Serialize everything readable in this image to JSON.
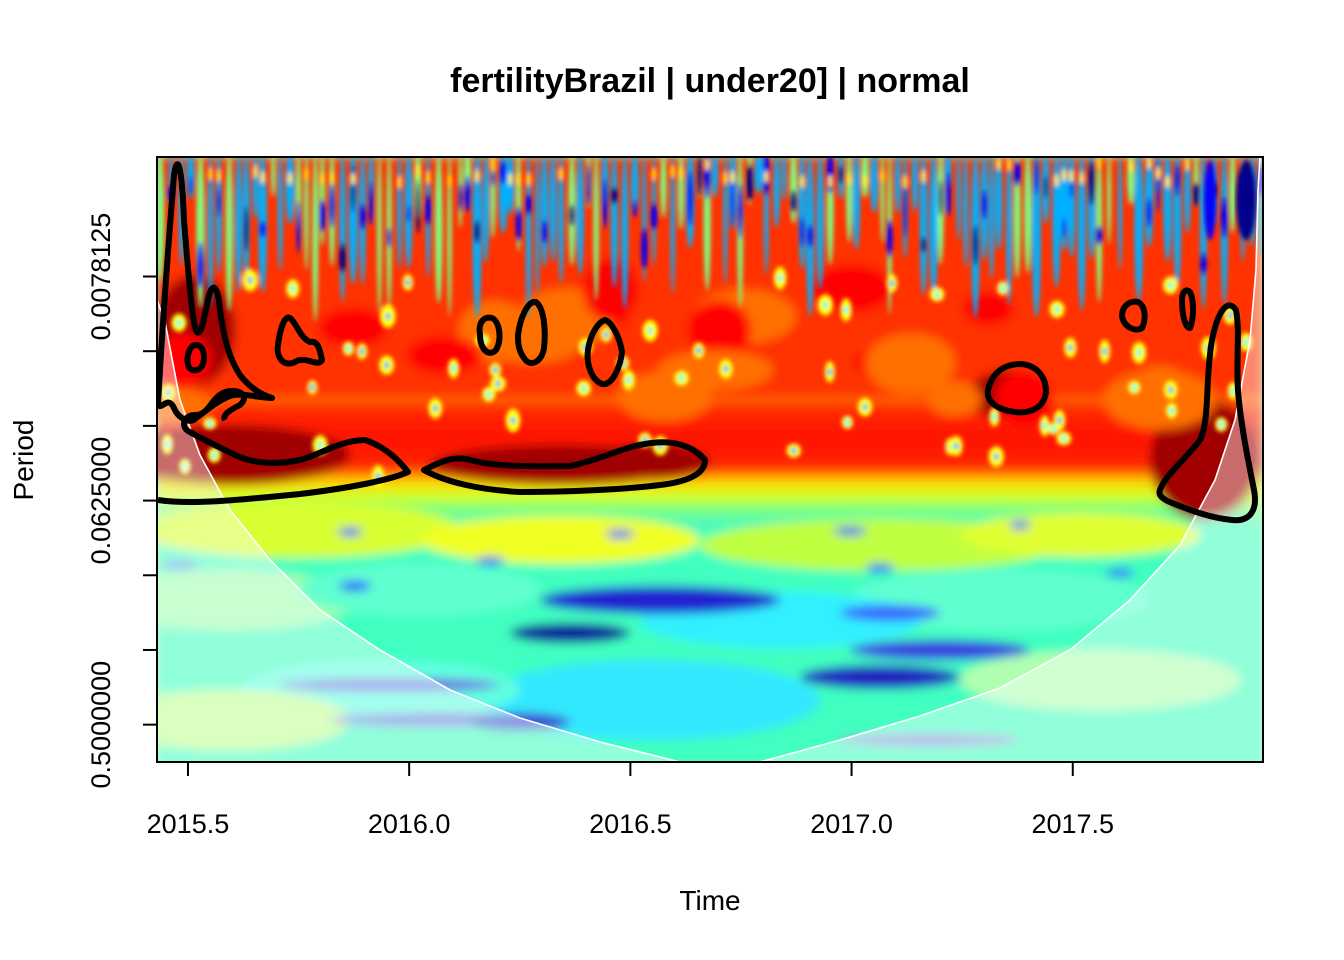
{
  "chart_data": {
    "type": "heatmap",
    "title": "fertilityBrazil | under20] | normal",
    "xlabel": "Time",
    "ylabel": "Period",
    "xlim": [
      2015.43,
      2017.93
    ],
    "ylim_log2": [
      -8.6,
      -0.5
    ],
    "y_scale": "log2",
    "y_reversed": true,
    "x_ticks": [
      {
        "value": 2015.5,
        "label": "2015.5"
      },
      {
        "value": 2016.0,
        "label": "2016.0"
      },
      {
        "value": 2016.5,
        "label": "2016.5"
      },
      {
        "value": 2017.0,
        "label": "2017.0"
      },
      {
        "value": 2017.5,
        "label": "2017.5"
      }
    ],
    "y_ticks": [
      {
        "log2": -7.0,
        "label": "0.0078125"
      },
      {
        "log2": -6.0,
        "label": ""
      },
      {
        "log2": -5.0,
        "label": ""
      },
      {
        "log2": -4.0,
        "label": "0.0625000"
      },
      {
        "log2": -3.0,
        "label": ""
      },
      {
        "log2": -2.0,
        "label": ""
      },
      {
        "log2": -1.0,
        "label": "0.5000000"
      }
    ],
    "palette": [
      "#00008b",
      "#0000ff",
      "#00b0ff",
      "#00ffff",
      "#80ff80",
      "#ffff00",
      "#ff8000",
      "#ff0000",
      "#8b0000"
    ],
    "significance_contour_color": "#000000",
    "cone_of_influence_color": "#ffffff",
    "grid": false,
    "legend": "none"
  }
}
